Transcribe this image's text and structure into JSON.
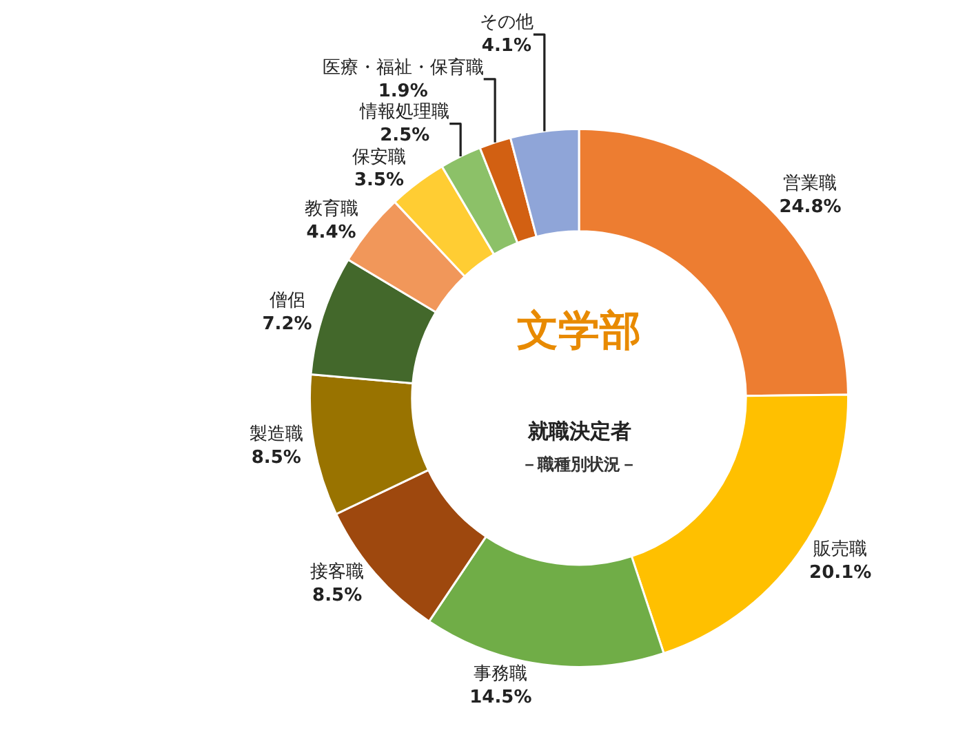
{
  "chart_data": {
    "type": "donut",
    "title": "文学部",
    "subtitle": "就職決定者",
    "annotations": [
      "－職種別状況－"
    ],
    "categories": [
      "営業職",
      "販売職",
      "事務職",
      "接客職",
      "製造職",
      "僧侶",
      "教育職",
      "保安職",
      "情報処理職",
      "医療・福祉・保育職",
      "その他"
    ],
    "values": [
      24.8,
      20.1,
      14.5,
      8.5,
      8.5,
      7.2,
      4.4,
      3.5,
      2.5,
      1.9,
      4.1
    ],
    "value_labels": [
      "24.8%",
      "20.1%",
      "14.5%",
      "8.5%",
      "8.5%",
      "7.2%",
      "4.4%",
      "3.5%",
      "2.5%",
      "1.9%",
      "4.1%"
    ],
    "colors": [
      "#ed7d31",
      "#ffc000",
      "#70ad47",
      "#9e480e",
      "#997300",
      "#43682b",
      "#f1975a",
      "#ffcd33",
      "#8cc168",
      "#d26012",
      "#8fa5d8"
    ],
    "legend": false
  }
}
